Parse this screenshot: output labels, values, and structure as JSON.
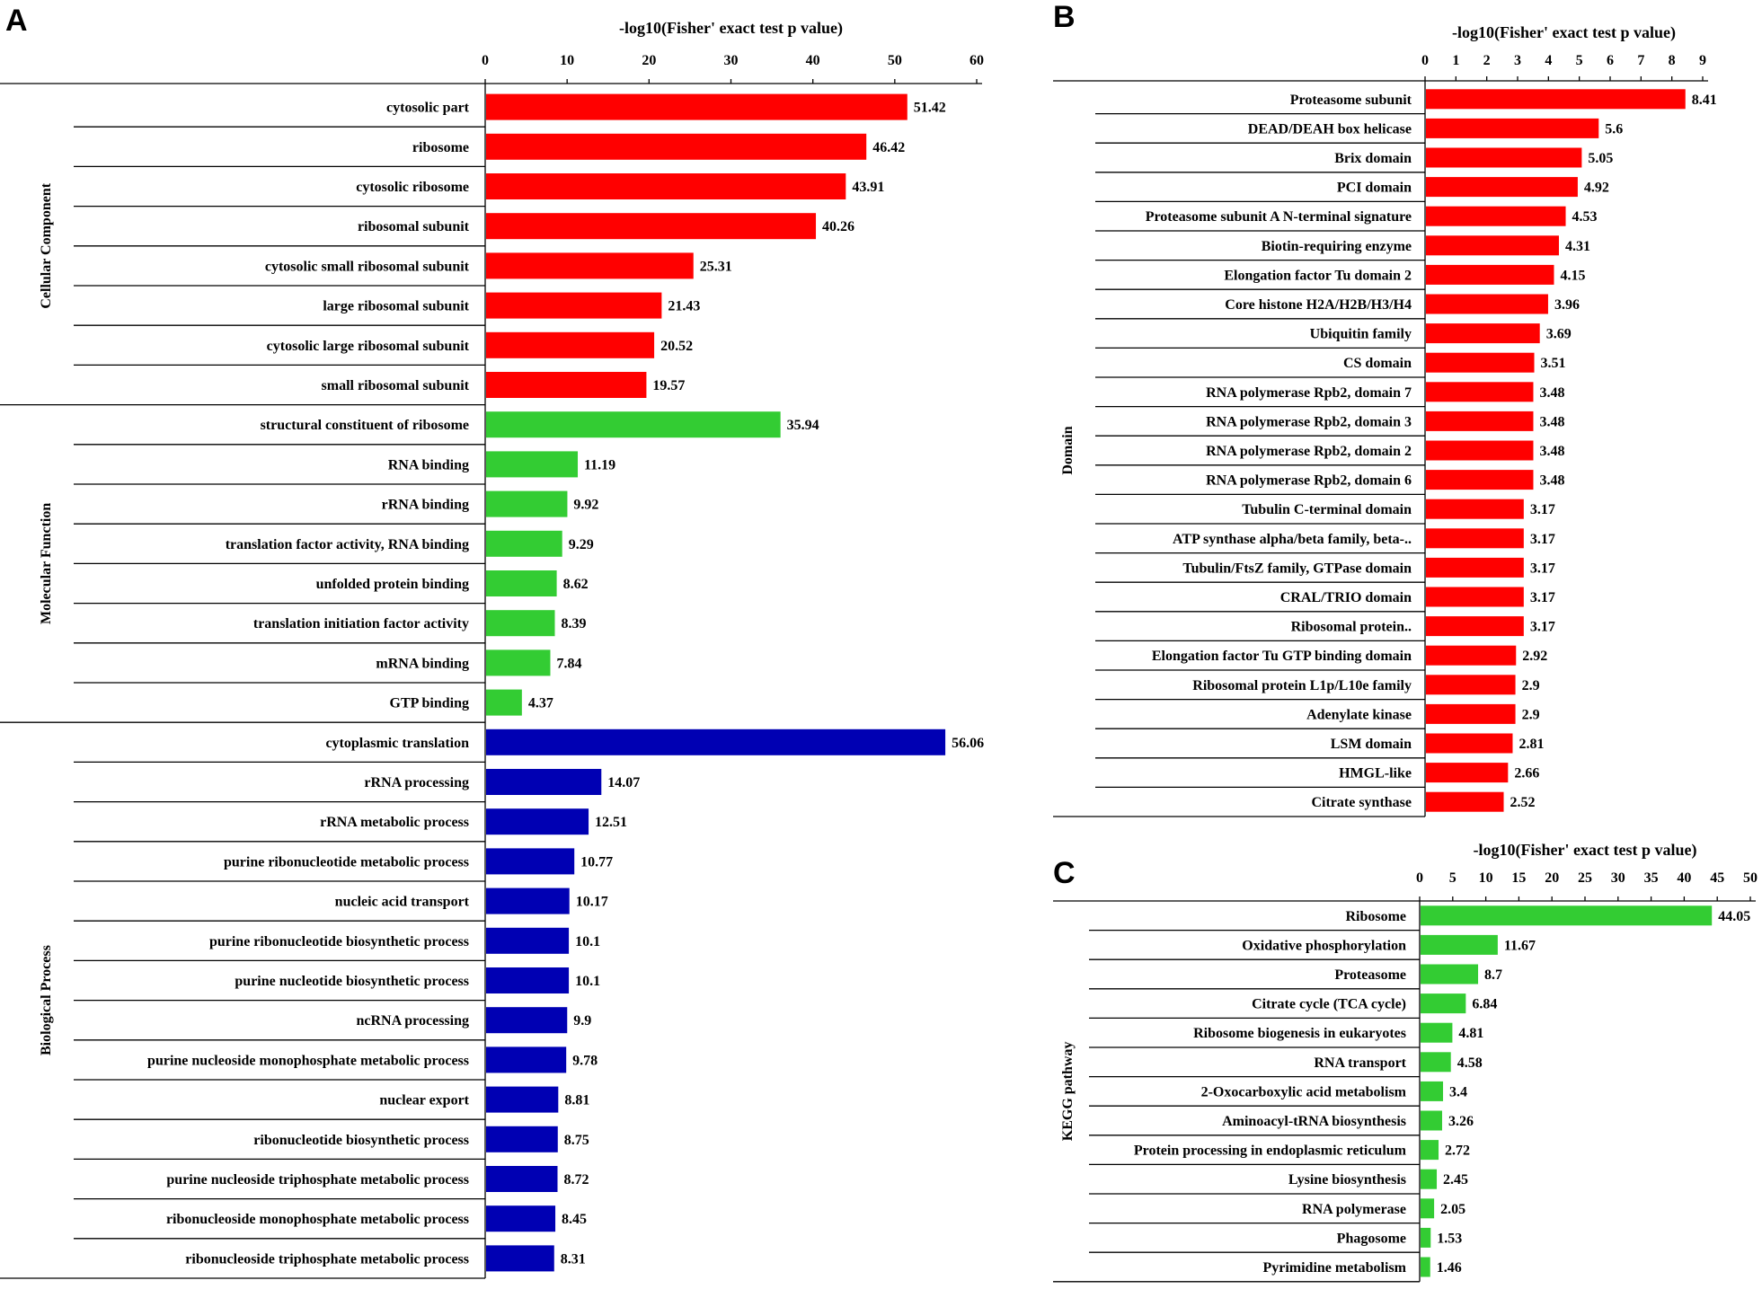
{
  "chart_data": [
    {
      "panel": "A",
      "type": "bar",
      "orientation": "horizontal",
      "xlabel": "-log10(Fisher' exact test p value)",
      "xlim": [
        0,
        60
      ],
      "xticks": [
        0,
        10,
        20,
        30,
        40,
        50,
        60
      ],
      "groups": [
        {
          "name": "Cellular Component",
          "color": "#ff0000",
          "categories": [
            "cytosolic part",
            "ribosome",
            "cytosolic ribosome",
            "ribosomal subunit",
            "cytosolic small ribosomal subunit",
            "large ribosomal subunit",
            "cytosolic large ribosomal subunit",
            "small ribosomal subunit"
          ],
          "values": [
            51.42,
            46.42,
            43.91,
            40.26,
            25.31,
            21.43,
            20.52,
            19.57
          ],
          "value_labels": [
            "51.42",
            "46.42",
            "43.91",
            "40.26",
            "25.31",
            "21.43",
            "20.52",
            "19.57"
          ]
        },
        {
          "name": "Molecular Function",
          "color": "#33cc33",
          "categories": [
            "structural constituent  of ribosome",
            "RNA binding",
            "rRNA binding",
            "translation factor activity, RNA binding",
            "unfolded protein binding",
            "translation initiation factor activity",
            "mRNA binding",
            "GTP binding"
          ],
          "values": [
            35.94,
            11.19,
            9.92,
            9.29,
            8.62,
            8.39,
            7.84,
            4.37
          ],
          "value_labels": [
            "35.94",
            "11.19",
            "9.92",
            "9.29",
            "8.62",
            "8.39",
            "7.84",
            "4.37"
          ]
        },
        {
          "name": "Biological Process",
          "color": "#0000b3",
          "categories": [
            "cytoplasmic translation",
            "rRNA processing",
            "rRNA metabolic process",
            "purine ribonucleotide metabolic process",
            "nucleic acid transport",
            "purine ribonucleotide biosynthetic process",
            "purine nucleotide biosynthetic process",
            "ncRNA processing",
            "purine nucleoside monophosphate metabolic process",
            "nuclear export",
            "ribonucleotide biosynthetic process",
            "purine nucleoside triphosphate metabolic process",
            "ribonucleoside monophosphate metabolic process",
            "ribonucleoside triphosphate metabolic process"
          ],
          "values": [
            56.06,
            14.07,
            12.51,
            10.77,
            10.17,
            10.1,
            10.1,
            9.9,
            9.78,
            8.81,
            8.75,
            8.72,
            8.45,
            8.31
          ],
          "value_labels": [
            "56.06",
            "14.07",
            "12.51",
            "10.77",
            "10.17",
            "10.1",
            "10.1",
            "9.9",
            "9.78",
            "8.81",
            "8.75",
            "8.72",
            "8.45",
            "8.31"
          ]
        }
      ]
    },
    {
      "panel": "B",
      "type": "bar",
      "orientation": "horizontal",
      "xlabel": "-log10(Fisher' exact test p value)",
      "xlim": [
        0,
        9
      ],
      "xticks": [
        0,
        1,
        2,
        3,
        4,
        5,
        6,
        7,
        8,
        9
      ],
      "groups": [
        {
          "name": "Domain",
          "color": "#ff0000",
          "categories": [
            "Proteasome subunit",
            "DEAD/DEAH box helicase",
            "Brix domain",
            "PCI domain",
            "Proteasome subunit A N-terminal signature",
            "Biotin-requiring enzyme",
            "Elongation factor Tu domain 2",
            "Core histone H2A/H2B/H3/H4",
            "Ubiquitin family",
            "CS domain",
            "RNA polymerase Rpb2, domain 7",
            "RNA polymerase Rpb2, domain 3",
            "RNA polymerase Rpb2, domain 2",
            "RNA polymerase Rpb2, domain 6",
            "Tubulin C-terminal domain",
            "ATP synthase alpha/beta family, beta-..",
            "Tubulin/FtsZ family, GTPase domain",
            "CRAL/TRIO domain",
            "Ribosomal protein..",
            "Elongation factor Tu GTP binding domain",
            "Ribosomal protein L1p/L10e family",
            "Adenylate kinase",
            "LSM domain",
            "HMGL-like",
            "Citrate synthase"
          ],
          "values": [
            8.41,
            5.6,
            5.05,
            4.92,
            4.53,
            4.31,
            4.15,
            3.96,
            3.69,
            3.51,
            3.48,
            3.48,
            3.48,
            3.48,
            3.17,
            3.17,
            3.17,
            3.17,
            3.17,
            2.92,
            2.9,
            2.9,
            2.81,
            2.66,
            2.52
          ],
          "value_labels": [
            "8.41",
            "5.6",
            "5.05",
            "4.92",
            "4.53",
            "4.31",
            "4.15",
            "3.96",
            "3.69",
            "3.51",
            "3.48",
            "3.48",
            "3.48",
            "3.48",
            "3.17",
            "3.17",
            "3.17",
            "3.17",
            "3.17",
            "2.92",
            "2.9",
            "2.9",
            "2.81",
            "2.66",
            "2.52"
          ]
        }
      ]
    },
    {
      "panel": "C",
      "type": "bar",
      "orientation": "horizontal",
      "xlabel": "-log10(Fisher' exact test p value)",
      "xlim": [
        0,
        50
      ],
      "xticks": [
        0,
        5,
        10,
        15,
        20,
        25,
        30,
        35,
        40,
        45,
        50
      ],
      "groups": [
        {
          "name": "KEGG pathway",
          "color": "#33cc33",
          "categories": [
            "Ribosome",
            "Oxidative phosphorylation",
            "Proteasome",
            "Citrate cycle (TCA cycle)",
            "Ribosome biogenesis in eukaryotes",
            "RNA transport",
            "2-Oxocarboxylic acid metabolism",
            "Aminoacyl-tRNA biosynthesis",
            "Protein processing in endoplasmic reticulum",
            "Lysine biosynthesis",
            "RNA polymerase",
            "Phagosome",
            "Pyrimidine metabolism"
          ],
          "values": [
            44.05,
            11.67,
            8.7,
            6.84,
            4.81,
            4.58,
            3.4,
            3.26,
            2.72,
            2.45,
            2.05,
            1.53,
            1.46
          ],
          "value_labels": [
            "44.05",
            "11.67",
            "8.7",
            "6.84",
            "4.81",
            "4.58",
            "3.4",
            "3.26",
            "2.72",
            "2.45",
            "2.05",
            "1.53",
            "1.46"
          ]
        }
      ]
    }
  ]
}
